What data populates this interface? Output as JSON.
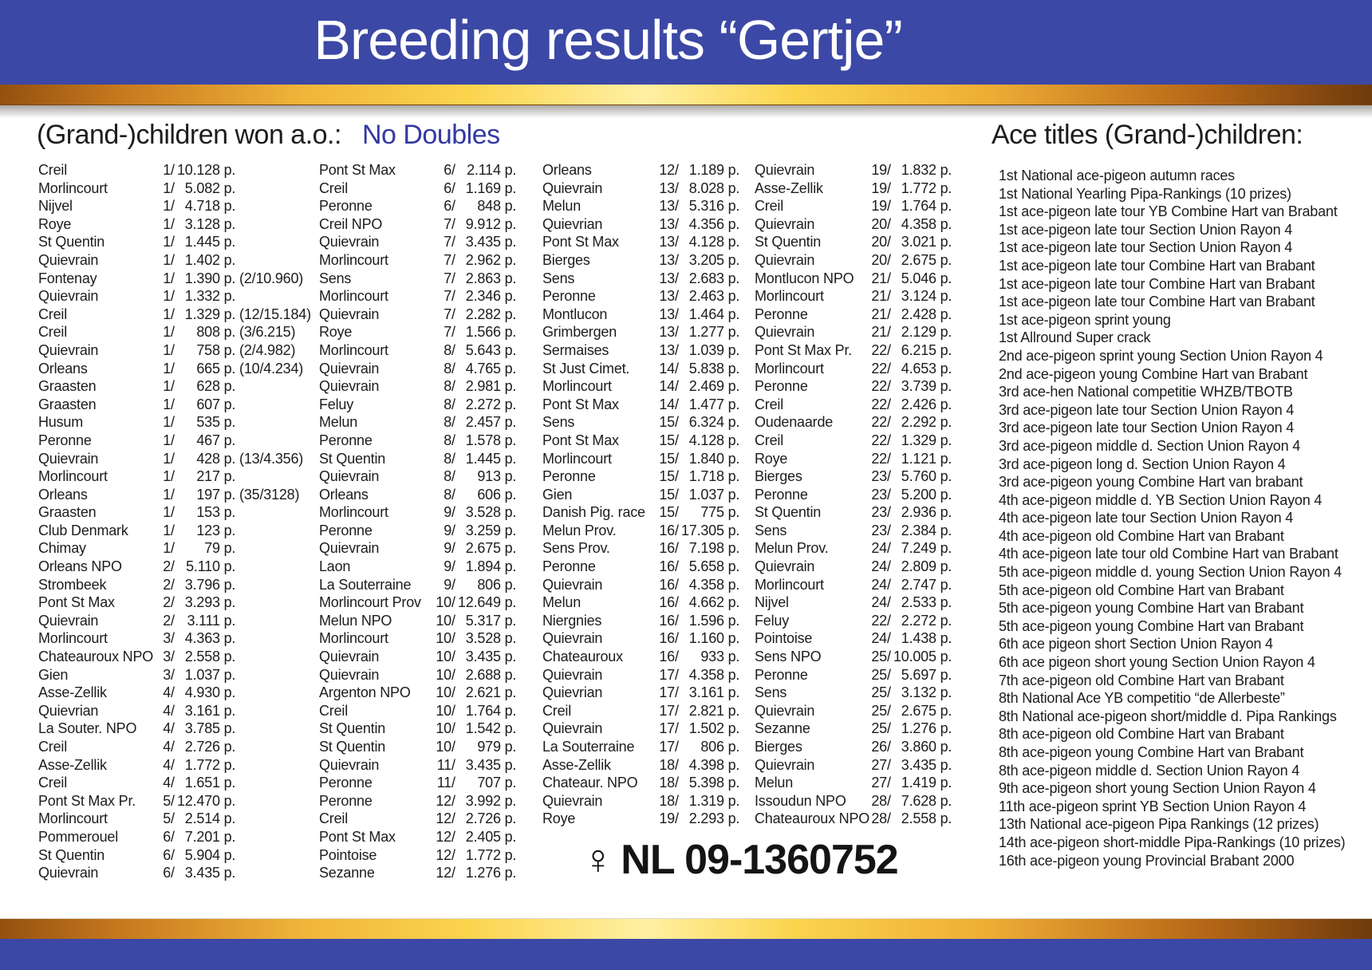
{
  "theme": {
    "banner_blue": "#3c48a5",
    "accent_blue": "#3339a3",
    "gold_mid": "#fbd44e",
    "gold_edge": "#8a4a12",
    "text": "#1e1c1d"
  },
  "banner": {
    "title": "Breeding results “Gertje”"
  },
  "headings": {
    "left": "(Grand-)children won a.o.:",
    "no_doubles": "No Doubles",
    "right": "Ace titles (Grand-)children:"
  },
  "ring": {
    "symbol": "♀",
    "number": "NL 09-1360752"
  },
  "results_columns": [
    [
      [
        "Creil",
        "1",
        "10.128",
        ""
      ],
      [
        "Morlincourt",
        "1",
        "5.082",
        ""
      ],
      [
        "Nijvel",
        "1",
        "4.718",
        ""
      ],
      [
        "Roye",
        "1",
        "3.128",
        ""
      ],
      [
        "St Quentin",
        "1",
        "1.445",
        ""
      ],
      [
        "Quievrain",
        "1",
        "1.402",
        ""
      ],
      [
        "Fontenay",
        "1",
        "1.390",
        "(2/10.960)"
      ],
      [
        "Quievrain",
        "1",
        "1.332",
        ""
      ],
      [
        "Creil",
        "1",
        "1.329",
        "(12/15.184)"
      ],
      [
        "Creil",
        "1",
        "808",
        "(3/6.215)"
      ],
      [
        "Quievrain",
        "1",
        "758",
        "(2/4.982)"
      ],
      [
        "Orleans",
        "1",
        "665",
        "(10/4.234)"
      ],
      [
        "Graasten",
        "1",
        "628",
        ""
      ],
      [
        "Graasten",
        "1",
        "607",
        ""
      ],
      [
        "Husum",
        "1",
        "535",
        ""
      ],
      [
        "Peronne",
        "1",
        "467",
        ""
      ],
      [
        "Quievrain",
        "1",
        "428",
        "(13/4.356)"
      ],
      [
        "Morlincourt",
        "1",
        "217",
        ""
      ],
      [
        "Orleans",
        "1",
        "197",
        "(35/3128)"
      ],
      [
        "Graasten",
        "1",
        "153",
        ""
      ],
      [
        "Club Denmark",
        "1",
        "123",
        ""
      ],
      [
        "Chimay",
        "1",
        "79",
        ""
      ],
      [
        "Orleans NPO",
        "2",
        "5.110",
        ""
      ],
      [
        "Strombeek",
        "2",
        "3.796",
        ""
      ],
      [
        "Pont St Max",
        "2",
        "3.293",
        ""
      ],
      [
        "Quievrain",
        "2",
        "3.111",
        ""
      ],
      [
        "Morlincourt",
        "3",
        "4.363",
        ""
      ],
      [
        "Chateauroux NPO",
        "3",
        "2.558",
        ""
      ],
      [
        "Gien",
        "3",
        "1.037",
        ""
      ],
      [
        "Asse-Zellik",
        "4",
        "4.930",
        ""
      ],
      [
        "Quievrian",
        "4",
        "3.161",
        ""
      ],
      [
        "La Souter. NPO",
        "4",
        "3.785",
        ""
      ],
      [
        "Creil",
        "4",
        "2.726",
        ""
      ],
      [
        "Asse-Zellik",
        "4",
        "1.772",
        ""
      ],
      [
        "Creil",
        "4",
        "1.651",
        ""
      ],
      [
        "Pont St Max Pr.",
        "5",
        "12.470",
        ""
      ],
      [
        "Morlincourt",
        "5",
        "2.514",
        ""
      ],
      [
        "Pommerouel",
        "6",
        "7.201",
        ""
      ],
      [
        "St Quentin",
        "6",
        "5.904",
        ""
      ],
      [
        "Quievrain",
        "6",
        "3.435",
        ""
      ]
    ],
    [
      [
        "Pont St Max",
        "6",
        "2.114",
        ""
      ],
      [
        "Creil",
        "6",
        "1.169",
        ""
      ],
      [
        "Peronne",
        "6",
        "848",
        ""
      ],
      [
        "Creil NPO",
        "7",
        "9.912",
        ""
      ],
      [
        "Quievrain",
        "7",
        "3.435",
        ""
      ],
      [
        "Morlincourt",
        "7",
        "2.962",
        ""
      ],
      [
        "Sens",
        "7",
        "2.863",
        ""
      ],
      [
        "Morlincourt",
        "7",
        "2.346",
        ""
      ],
      [
        "Quievrain",
        "7",
        "2.282",
        ""
      ],
      [
        "Roye",
        "7",
        "1.566",
        ""
      ],
      [
        "Morlincourt",
        "8",
        "5.643",
        ""
      ],
      [
        "Quievrain",
        "8",
        "4.765",
        ""
      ],
      [
        "Quievrain",
        "8",
        "2.981",
        ""
      ],
      [
        "Feluy",
        "8",
        "2.272",
        ""
      ],
      [
        "Melun",
        "8",
        "2.457",
        ""
      ],
      [
        "Peronne",
        "8",
        "1.578",
        ""
      ],
      [
        "St Quentin",
        "8",
        "1.445",
        ""
      ],
      [
        "Quievrain",
        "8",
        "913",
        ""
      ],
      [
        "Orleans",
        "8",
        "606",
        ""
      ],
      [
        "Morlincourt",
        "9",
        "3.528",
        ""
      ],
      [
        "Peronne",
        "9",
        "3.259",
        ""
      ],
      [
        "Quievrain",
        "9",
        "2.675",
        ""
      ],
      [
        "Laon",
        "9",
        "1.894",
        ""
      ],
      [
        "La Souterraine",
        "9",
        "806",
        ""
      ],
      [
        "Morlincourt Prov",
        "10",
        "12.649",
        ""
      ],
      [
        "Melun NPO",
        "10",
        "5.317",
        ""
      ],
      [
        "Morlincourt",
        "10",
        "3.528",
        ""
      ],
      [
        "Quievrain",
        "10",
        "3.435",
        ""
      ],
      [
        "Quievrain",
        "10",
        "2.688",
        ""
      ],
      [
        "Argenton NPO",
        "10",
        "2.621",
        ""
      ],
      [
        "Creil",
        "10",
        "1.764",
        ""
      ],
      [
        "St Quentin",
        "10",
        "1.542",
        ""
      ],
      [
        "St Quentin",
        "10",
        "979",
        ""
      ],
      [
        "Quievrain",
        "11",
        "3.435",
        ""
      ],
      [
        "Peronne",
        "11",
        "707",
        ""
      ],
      [
        "Peronne",
        "12",
        "3.992",
        ""
      ],
      [
        "Creil",
        "12",
        "2.726",
        ""
      ],
      [
        "Pont St Max",
        "12",
        "2.405",
        ""
      ],
      [
        "Pointoise",
        "12",
        "1.772",
        ""
      ],
      [
        "Sezanne",
        "12",
        "1.276",
        ""
      ]
    ],
    [
      [
        "Orleans",
        "12",
        "1.189",
        ""
      ],
      [
        "Quievrain",
        "13",
        "8.028",
        ""
      ],
      [
        "Melun",
        "13",
        "5.316",
        ""
      ],
      [
        "Quievrian",
        "13",
        "4.356",
        ""
      ],
      [
        "Pont St Max",
        "13",
        "4.128",
        ""
      ],
      [
        "Bierges",
        "13",
        "3.205",
        ""
      ],
      [
        "Sens",
        "13",
        "2.683",
        ""
      ],
      [
        "Peronne",
        "13",
        "2.463",
        ""
      ],
      [
        "Montlucon",
        "13",
        "1.464",
        ""
      ],
      [
        "Grimbergen",
        "13",
        "1.277",
        ""
      ],
      [
        "Sermaises",
        "13",
        "1.039",
        ""
      ],
      [
        "St Just Cimet.",
        "14",
        "5.838",
        ""
      ],
      [
        "Morlincourt",
        "14",
        "2.469",
        ""
      ],
      [
        "Pont St Max",
        "14",
        "1.477",
        ""
      ],
      [
        "Sens",
        "15",
        "6.324",
        ""
      ],
      [
        "Pont St Max",
        "15",
        "4.128",
        ""
      ],
      [
        "Morlincourt",
        "15",
        "1.840",
        ""
      ],
      [
        "Peronne",
        "15",
        "1.718",
        ""
      ],
      [
        "Gien",
        "15",
        "1.037",
        ""
      ],
      [
        "Danish Pig. race",
        "15",
        "775",
        ""
      ],
      [
        "Melun Prov.",
        "16",
        "17.305",
        ""
      ],
      [
        "Sens Prov.",
        "16",
        "7.198",
        ""
      ],
      [
        "Peronne",
        "16",
        "5.658",
        ""
      ],
      [
        "Quievrain",
        "16",
        "4.358",
        ""
      ],
      [
        "Melun",
        "16",
        "4.662",
        ""
      ],
      [
        "Niergnies",
        "16",
        "1.596",
        ""
      ],
      [
        "Quievrain",
        "16",
        "1.160",
        ""
      ],
      [
        "Chateauroux",
        "16",
        "933",
        ""
      ],
      [
        "Quievrain",
        "17",
        "4.358",
        ""
      ],
      [
        "Quievrian",
        "17",
        "3.161",
        ""
      ],
      [
        "Creil",
        "17",
        "2.821",
        ""
      ],
      [
        "Quievrain",
        "17",
        "1.502",
        ""
      ],
      [
        "La Souterraine",
        "17",
        "806",
        ""
      ],
      [
        "Asse-Zellik",
        "18",
        "4.398",
        ""
      ],
      [
        "Chateaur. NPO",
        "18",
        "5.398",
        ""
      ],
      [
        "Quievrain",
        "18",
        "1.319",
        ""
      ],
      [
        "Roye",
        "19",
        "2.293",
        ""
      ]
    ],
    [
      [
        "Quievrain",
        "19",
        "1.832",
        ""
      ],
      [
        "Asse-Zellik",
        "19",
        "1.772",
        ""
      ],
      [
        "Creil",
        "19",
        "1.764",
        ""
      ],
      [
        "Quievrain",
        "20",
        "4.358",
        ""
      ],
      [
        "St Quentin",
        "20",
        "3.021",
        ""
      ],
      [
        "Quievrain",
        "20",
        "2.675",
        ""
      ],
      [
        "Montlucon NPO",
        "21",
        "5.046",
        ""
      ],
      [
        "Morlincourt",
        "21",
        "3.124",
        ""
      ],
      [
        "Peronne",
        "21",
        "2.428",
        ""
      ],
      [
        "Quievrain",
        "21",
        "2.129",
        ""
      ],
      [
        "Pont St Max Pr.",
        "22",
        "6.215",
        ""
      ],
      [
        "Morlincourt",
        "22",
        "4.653",
        ""
      ],
      [
        "Peronne",
        "22",
        "3.739",
        ""
      ],
      [
        "Creil",
        "22",
        "2.426",
        ""
      ],
      [
        "Oudenaarde",
        "22",
        "2.292",
        ""
      ],
      [
        "Creil",
        "22",
        "1.329",
        ""
      ],
      [
        "Roye",
        "22",
        "1.121",
        ""
      ],
      [
        "Bierges",
        "23",
        "5.760",
        ""
      ],
      [
        "Peronne",
        "23",
        "5.200",
        ""
      ],
      [
        "St Quentin",
        "23",
        "2.936",
        ""
      ],
      [
        "Sens",
        "23",
        "2.384",
        ""
      ],
      [
        "Melun Prov.",
        "24",
        "7.249",
        ""
      ],
      [
        "Quievrain",
        "24",
        "2.809",
        ""
      ],
      [
        "Morlincourt",
        "24",
        "2.747",
        ""
      ],
      [
        "Nijvel",
        "24",
        "2.533",
        ""
      ],
      [
        "Feluy",
        "22",
        "2.272",
        ""
      ],
      [
        "Pointoise",
        "24",
        "1.438",
        ""
      ],
      [
        "Sens NPO",
        "25",
        "10.005",
        ""
      ],
      [
        "Peronne",
        "25",
        "5.697",
        ""
      ],
      [
        "Sens",
        "25",
        "3.132",
        ""
      ],
      [
        "Quievrain",
        "25",
        "2.675",
        ""
      ],
      [
        "Sezanne",
        "25",
        "1.276",
        ""
      ],
      [
        "Bierges",
        "26",
        "3.860",
        ""
      ],
      [
        "Quievrain",
        "27",
        "3.435",
        ""
      ],
      [
        "Melun",
        "27",
        "1.419",
        ""
      ],
      [
        "Issoudun NPO",
        "28",
        "7.628",
        ""
      ],
      [
        "Chateauroux NPO",
        "28",
        "2.558",
        ""
      ]
    ]
  ],
  "ace_titles": [
    "1st National ace-pigeon autumn races",
    "1st National Yearling Pipa-Rankings (10 prizes)",
    "1st ace-pigeon late tour YB Combine Hart van Brabant",
    "1st ace-pigeon late tour Section Union Rayon 4",
    "1st ace-pigeon late tour Section Union Rayon 4",
    "1st ace-pigeon late tour Combine Hart van Brabant",
    "1st ace-pigeon late tour Combine Hart van Brabant",
    "1st ace-pigeon late tour Combine Hart van Brabant",
    "1st ace-pigeon sprint young",
    "1st Allround Super crack",
    "2nd ace-pigeon sprint young Section Union Rayon 4",
    "2nd ace-pigeon young Combine Hart van Brabant",
    "3rd ace-hen National competitie WHZB/TBOTB",
    "3rd ace-pigeon late tour Section Union Rayon 4",
    "3rd ace-pigeon late tour Section Union Rayon 4",
    "3rd ace-pigeon middle d. Section Union Rayon 4",
    "3rd ace-pigeon long d. Section Union Rayon 4",
    "3rd ace-pigeon young Combine Hart van brabant",
    "4th ace-pigeon middle d. YB Section Union Rayon 4",
    "4th ace-pigeon late tour Section Union Rayon 4",
    "4th ace-pigeon old Combine Hart van Brabant",
    "4th ace-pigeon late tour old Combine Hart van Brabant",
    "5th ace-pigeon middle d. young Section Union Rayon 4",
    "5th ace-pigeon old Combine Hart van Brabant",
    "5th ace-pigeon young Combine Hart van Brabant",
    "5th ace-pigeon young Combine Hart van Brabant",
    "6th ace pigeon short Section Union Rayon 4",
    "6th ace pigeon short young Section Union Rayon 4",
    "7th ace-pigeon old Combine Hart van Brabant",
    "8th National Ace YB competitio “de Allerbeste”",
    "8th National ace-pigeon short/middle d. Pipa Rankings",
    "8th ace-pigeon old Combine Hart van Brabant",
    "8th ace-pigeon young Combine Hart van Brabant",
    "8th ace-pigeon middle d. Section Union Rayon 4",
    "9th ace-pigeon short young Section Union Rayon 4",
    "11th ace-pigeon sprint YB Section Union Rayon 4",
    "13th National ace-pigeon Pipa Rankings (12 prizes)",
    "14th ace-pigeon short-middle Pipa-Rankings (10 prizes)",
    "16th ace-pigeon young Provincial Brabant 2000"
  ]
}
